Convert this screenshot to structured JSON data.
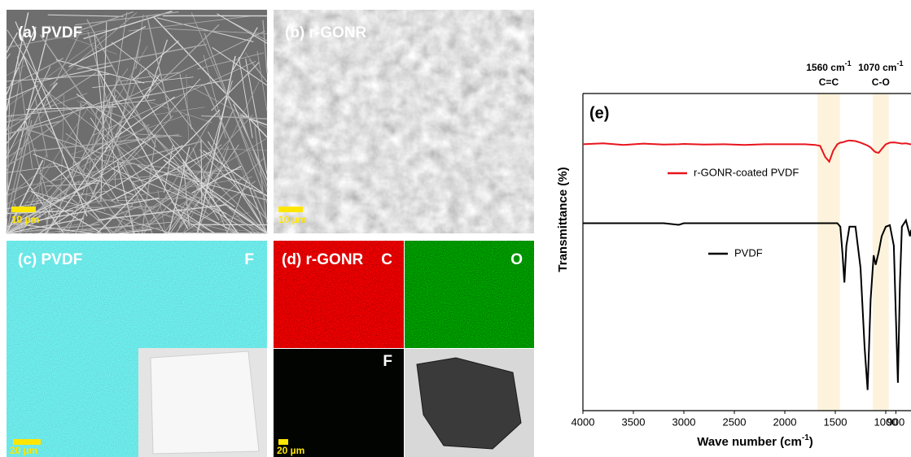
{
  "panels": [
    {
      "label": "(a) PVDF",
      "scale": "10 µm"
    },
    {
      "label": "(b) r-GONR",
      "scale": "10 µm"
    },
    {
      "label": "(c) PVDF",
      "element": "F",
      "scale": "20 µm"
    },
    {
      "label": "(d) r-GONR",
      "elements": [
        "C",
        "O",
        "F"
      ],
      "scale": "20 µm"
    }
  ],
  "chart_data": {
    "type": "line",
    "panel_label": "(e)",
    "xlabel": "Wave number (cm",
    "xlabel_sup": "-1",
    "xlabel_end": ")",
    "ylabel": "Transmittance (%)",
    "xlim": [
      4000,
      750
    ],
    "xticks": [
      4000,
      3500,
      3000,
      2500,
      2000,
      1500,
      1000,
      900
    ],
    "ylim": [
      0,
      100
    ],
    "annotations": [
      {
        "text": "1560 cm",
        "sup": "-1",
        "bond": "C=C",
        "band": [
          1675,
          1455
        ]
      },
      {
        "text": "1070 cm",
        "sup": "-1",
        "bond": "C-O",
        "band": [
          1130,
          970
        ]
      }
    ],
    "x": [
      4000,
      3800,
      3600,
      3400,
      3200,
      3050,
      3000,
      2800,
      2600,
      2400,
      2200,
      2000,
      1800,
      1700,
      1650,
      1600,
      1560,
      1520,
      1480,
      1450,
      1430,
      1410,
      1390,
      1360,
      1300,
      1250,
      1210,
      1180,
      1150,
      1120,
      1100,
      1070,
      1040,
      1000,
      960,
      920,
      900,
      880,
      860,
      840,
      800,
      760,
      750
    ],
    "series": [
      {
        "name": "r-GONR-coated PVDF",
        "color": "#e8141c",
        "values": [
          84,
          84.3,
          83.8,
          84.2,
          83.9,
          84,
          84.1,
          83.9,
          84,
          83.8,
          84,
          84,
          84,
          83.8,
          83.5,
          80,
          78.5,
          82,
          84,
          84.5,
          84.6,
          84.8,
          85,
          85.2,
          85,
          84.5,
          84,
          83.6,
          83,
          82,
          81.5,
          81.3,
          82.5,
          84,
          84.5,
          84.6,
          84.5,
          84.4,
          84.3,
          84.2,
          84.3,
          84,
          84
        ]
      },
      {
        "name": "PVDF",
        "color": "#000000",
        "values": [
          59.1,
          59.1,
          59.1,
          59.1,
          59.1,
          58.6,
          59.1,
          59.1,
          59.1,
          59.1,
          59.1,
          59.1,
          59.1,
          59.1,
          59.1,
          59.1,
          59.1,
          59.1,
          59.1,
          58,
          50,
          40.4,
          52,
          58,
          58,
          45,
          20,
          6.5,
          35,
          49,
          46,
          50,
          55,
          58,
          58.5,
          52,
          30,
          8.8,
          40,
          58,
          60,
          55,
          57
        ]
      }
    ]
  }
}
